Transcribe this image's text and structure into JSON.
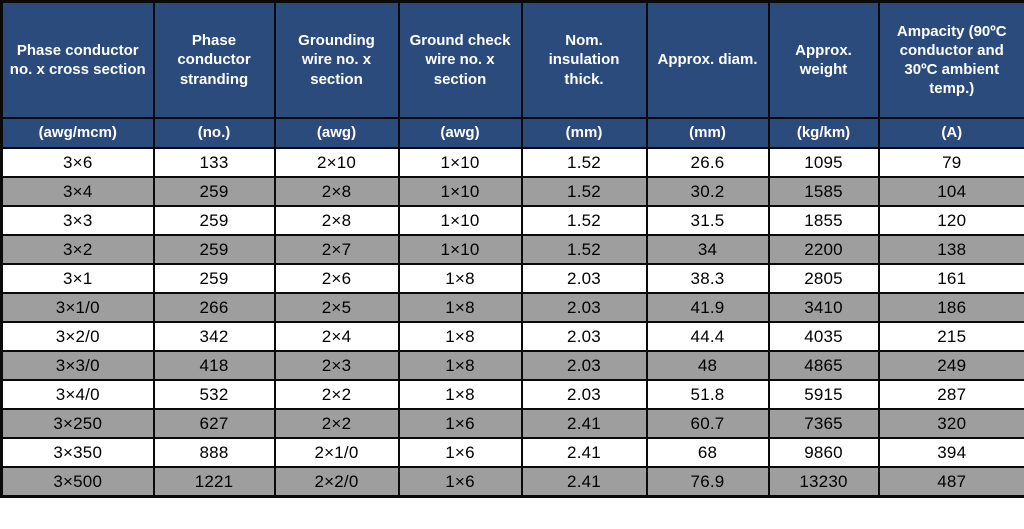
{
  "table": {
    "columns": [
      {
        "label": "Phase conductor no. x cross section",
        "unit": "(awg/mcm)"
      },
      {
        "label": "Phase conductor stranding",
        "unit": "(no.)"
      },
      {
        "label": "Grounding wire no. x section",
        "unit": "(awg)"
      },
      {
        "label": "Ground check wire no. x section",
        "unit": "(awg)"
      },
      {
        "label": "Nom. insulation thick.",
        "unit": "(mm)"
      },
      {
        "label": "Approx. diam.",
        "unit": "(mm)"
      },
      {
        "label": "Approx. weight",
        "unit": "(kg/km)"
      },
      {
        "label": "Ampacity (90ºC conductor and 30ºC ambient temp.)",
        "unit": "(A)"
      }
    ],
    "rows": [
      [
        "3×6",
        "133",
        "2×10",
        "1×10",
        "1.52",
        "26.6",
        "1095",
        "79"
      ],
      [
        "3×4",
        "259",
        "2×8",
        "1×10",
        "1.52",
        "30.2",
        "1585",
        "104"
      ],
      [
        "3×3",
        "259",
        "2×8",
        "1×10",
        "1.52",
        "31.5",
        "1855",
        "120"
      ],
      [
        "3×2",
        "259",
        "2×7",
        "1×10",
        "1.52",
        "34",
        "2200",
        "138"
      ],
      [
        "3×1",
        "259",
        "2×6",
        "1×8",
        "2.03",
        "38.3",
        "2805",
        "161"
      ],
      [
        "3×1/0",
        "266",
        "2×5",
        "1×8",
        "2.03",
        "41.9",
        "3410",
        "186"
      ],
      [
        "3×2/0",
        "342",
        "2×4",
        "1×8",
        "2.03",
        "44.4",
        "4035",
        "215"
      ],
      [
        "3×3/0",
        "418",
        "2×3",
        "1×8",
        "2.03",
        "48",
        "4865",
        "249"
      ],
      [
        "3×4/0",
        "532",
        "2×2",
        "1×8",
        "2.03",
        "51.8",
        "5915",
        "287"
      ],
      [
        "3×250",
        "627",
        "2×2",
        "1×6",
        "2.41",
        "60.7",
        "7365",
        "320"
      ],
      [
        "3×350",
        "888",
        "2×1/0",
        "1×6",
        "2.41",
        "68",
        "9860",
        "394"
      ],
      [
        "3×500",
        "1221",
        "2×2/0",
        "1×6",
        "2.41",
        "76.9",
        "13230",
        "487"
      ]
    ]
  },
  "colors": {
    "header_bg": "#2b4b7d",
    "header_text": "#ffffff",
    "row_bg": "#ffffff",
    "row_alt_bg": "#9e9e9e",
    "border": "#0a0a0a"
  }
}
